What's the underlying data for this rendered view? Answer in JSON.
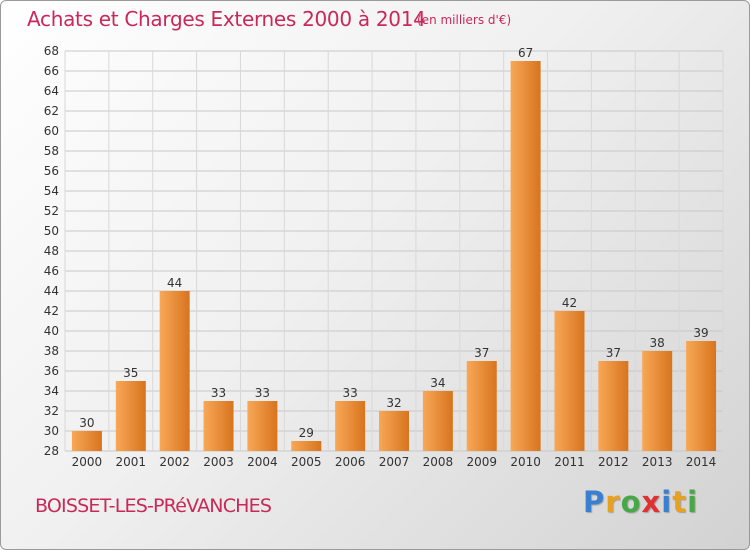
{
  "chart_data": {
    "type": "bar",
    "title": "Achats et Charges Externes 2000 à 2014",
    "subtitle": "(en milliers d'€)",
    "categories": [
      "2000",
      "2001",
      "2002",
      "2003",
      "2004",
      "2005",
      "2006",
      "2007",
      "2008",
      "2009",
      "2010",
      "2011",
      "2012",
      "2013",
      "2014"
    ],
    "values": [
      30,
      35,
      44,
      33,
      33,
      29,
      33,
      32,
      34,
      37,
      67,
      42,
      37,
      38,
      39
    ],
    "ylim": [
      28,
      68
    ],
    "ytick_step": 2,
    "grid": true,
    "xlabel": "",
    "ylabel": "",
    "bar_color_light": "#f8a857",
    "bar_color_dark": "#d8741e"
  },
  "footer": {
    "town": "BOISSET-LES-PRéVANCHES",
    "logo_letters": [
      "P",
      "r",
      "o",
      "x",
      "i",
      "t",
      "i"
    ],
    "logo_colors": [
      "#3a7fd0",
      "#e8a020",
      "#48a848",
      "#e03030",
      "#3a7fd0",
      "#e8a020",
      "#48a848"
    ]
  }
}
